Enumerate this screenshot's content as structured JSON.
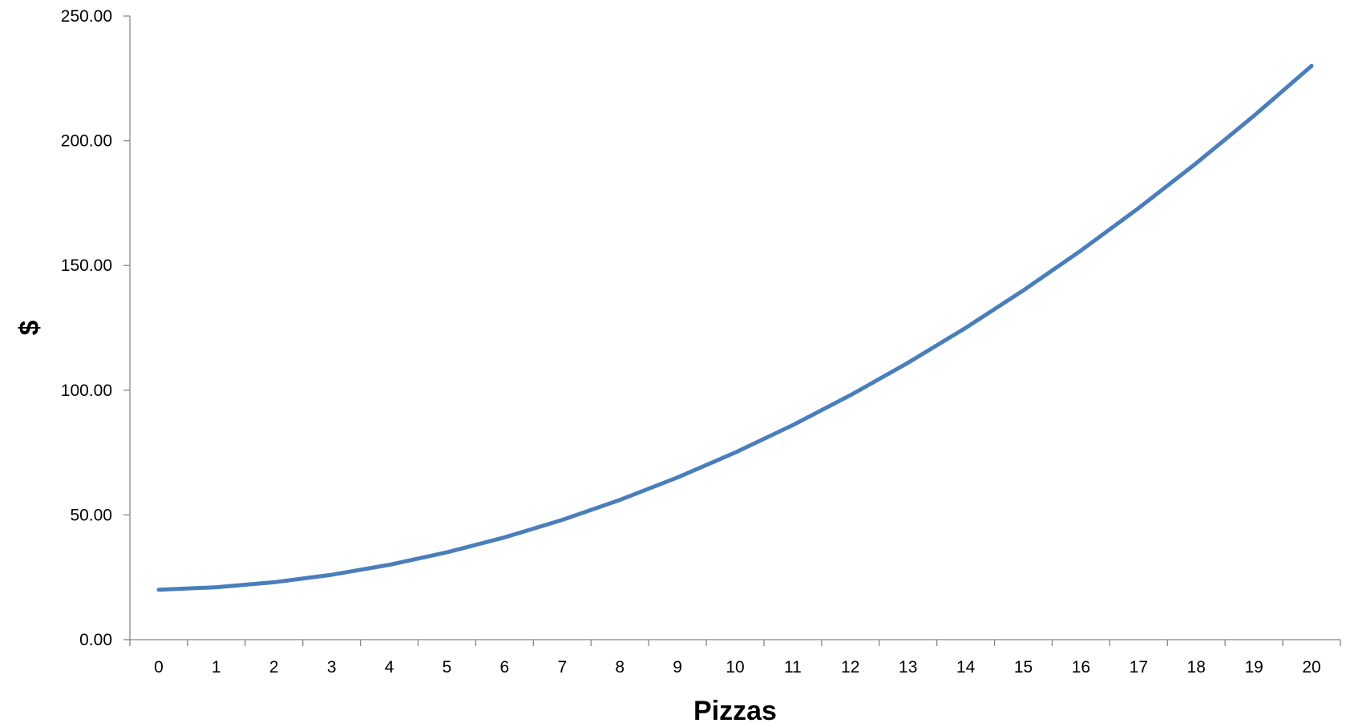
{
  "chart_data": {
    "type": "line",
    "title": "",
    "xlabel": "Pizzas",
    "ylabel": "$",
    "x": [
      0,
      1,
      2,
      3,
      4,
      5,
      6,
      7,
      8,
      9,
      10,
      11,
      12,
      13,
      14,
      15,
      16,
      17,
      18,
      19,
      20
    ],
    "x_tick_labels": [
      "0",
      "1",
      "2",
      "3",
      "4",
      "5",
      "6",
      "7",
      "8",
      "9",
      "10",
      "11",
      "12",
      "13",
      "14",
      "15",
      "16",
      "17",
      "18",
      "19",
      "20"
    ],
    "series": [
      {
        "color": "#4a7ebb",
        "values": [
          20,
          21,
          23,
          26,
          30,
          35,
          41,
          48,
          56,
          65,
          75,
          86,
          98,
          111,
          125,
          140,
          156,
          173,
          191,
          210,
          230
        ]
      }
    ],
    "ylim": [
      0,
      250
    ],
    "y_ticks": [
      0,
      50,
      100,
      150,
      200,
      250
    ],
    "y_tick_labels": [
      "0.00",
      "50.00",
      "100.00",
      "150.00",
      "200.00",
      "250.00"
    ],
    "grid": false,
    "legend": "none",
    "axis_color": "#868686"
  }
}
